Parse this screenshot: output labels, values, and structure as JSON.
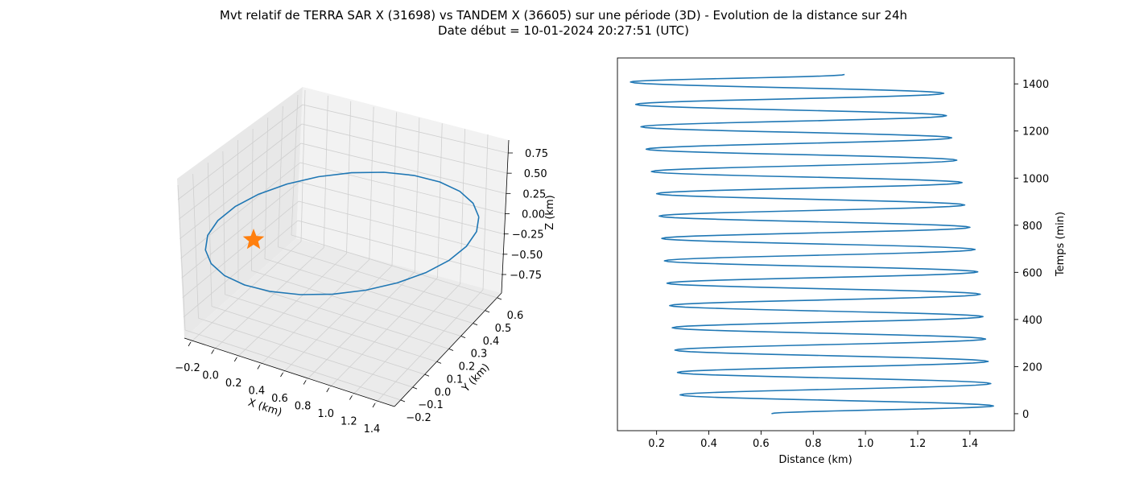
{
  "figure": {
    "title_line1": "Mvt relatif de TERRA SAR X (31698) vs TANDEM X (36605) sur une période (3D) - Evolution de la distance sur 24h",
    "title_line2": "Date début = 10-01-2024 20:27:51 (UTC)"
  },
  "colors": {
    "trajectory": "#1f77b4",
    "origin_marker": "#ff7f0e",
    "pane": "#f2f2f2",
    "grid": "#cccccc"
  },
  "chart_data": [
    {
      "type": "line",
      "projection": "3d",
      "xlabel": "X (km)",
      "ylabel": "Y (km)",
      "zlabel": "Z (km)",
      "x_ticks": [
        "−0.2",
        "0.0",
        "0.2",
        "0.4",
        "0.6",
        "0.8",
        "1.0",
        "1.2",
        "1.4"
      ],
      "y_ticks": [
        "−0.2",
        "−0.1",
        "0.0",
        "0.1",
        "0.2",
        "0.3",
        "0.4",
        "0.5",
        "0.6"
      ],
      "z_ticks": [
        "−0.75",
        "−0.50",
        "−0.25",
        "0.00",
        "0.25",
        "0.50",
        "0.75"
      ],
      "marker": {
        "shape": "star",
        "label": "origin",
        "x": 0,
        "y": 0,
        "z": 0
      },
      "trajectory_shape": "closed relative-motion ellipse",
      "grid": true
    },
    {
      "type": "line",
      "xlabel": "Distance (km)",
      "ylabel": "Temps (min)",
      "y_axis_side": "right",
      "xlim": [
        0.05,
        1.57
      ],
      "ylim": [
        -72,
        1510
      ],
      "x_ticks": [
        "0.2",
        "0.4",
        "0.6",
        "0.8",
        "1.0",
        "1.2",
        "1.4"
      ],
      "y_ticks": [
        "0",
        "200",
        "400",
        "600",
        "800",
        "1000",
        "1200",
        "1400"
      ],
      "series": [
        {
          "t_start": 0,
          "t_end": 1440,
          "d_start": 0.64,
          "d_end": 0.92,
          "period_min": 94.8,
          "extrema": [
            {
              "t": 0,
              "d": 0.64
            },
            {
              "t": 33,
              "d": 1.49
            },
            {
              "t": 80,
              "d": 0.29
            },
            {
              "t": 128,
              "d": 1.48
            },
            {
              "t": 175,
              "d": 0.28
            },
            {
              "t": 222,
              "d": 1.47
            },
            {
              "t": 270,
              "d": 0.27
            },
            {
              "t": 317,
              "d": 1.46
            },
            {
              "t": 365,
              "d": 0.26
            },
            {
              "t": 412,
              "d": 1.45
            },
            {
              "t": 459,
              "d": 0.25
            },
            {
              "t": 507,
              "d": 1.44
            },
            {
              "t": 554,
              "d": 0.24
            },
            {
              "t": 602,
              "d": 1.43
            },
            {
              "t": 649,
              "d": 0.23
            },
            {
              "t": 697,
              "d": 1.42
            },
            {
              "t": 744,
              "d": 0.22
            },
            {
              "t": 791,
              "d": 1.4
            },
            {
              "t": 839,
              "d": 0.21
            },
            {
              "t": 886,
              "d": 1.38
            },
            {
              "t": 934,
              "d": 0.2
            },
            {
              "t": 981,
              "d": 1.37
            },
            {
              "t": 1028,
              "d": 0.18
            },
            {
              "t": 1076,
              "d": 1.35
            },
            {
              "t": 1123,
              "d": 0.16
            },
            {
              "t": 1171,
              "d": 1.33
            },
            {
              "t": 1218,
              "d": 0.14
            },
            {
              "t": 1265,
              "d": 1.31
            },
            {
              "t": 1313,
              "d": 0.12
            },
            {
              "t": 1360,
              "d": 1.3
            },
            {
              "t": 1408,
              "d": 0.1
            },
            {
              "t": 1440,
              "d": 0.92
            }
          ]
        }
      ],
      "grid": false
    }
  ]
}
